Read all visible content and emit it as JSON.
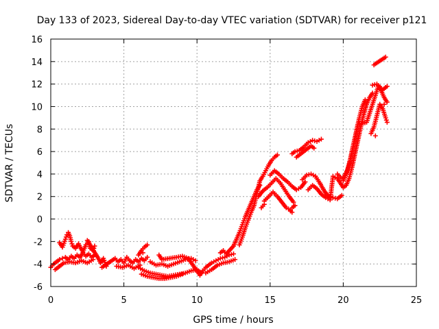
{
  "chart_data": {
    "type": "scatter",
    "title": "Day 133 of 2023, Sidereal Day-to-day VTEC variation (SDTVAR) for receiver p121",
    "xlabel": "GPS time / hours",
    "ylabel": "SDTVAR / TECUs",
    "xlim": [
      0,
      25
    ],
    "ylim": [
      -6,
      16
    ],
    "xticks": [
      0,
      5,
      10,
      15,
      20,
      25
    ],
    "yticks": [
      -6,
      -4,
      -2,
      0,
      2,
      4,
      6,
      8,
      10,
      12,
      14,
      16
    ],
    "grid": true,
    "marker": "+",
    "color": "#ff0000",
    "series": [
      {
        "name": "SDTVAR",
        "points": [
          [
            0.0,
            -4.3
          ],
          [
            0.2,
            -4.0
          ],
          [
            0.4,
            -3.8
          ],
          [
            0.6,
            -3.6
          ],
          [
            0.8,
            -3.5
          ],
          [
            1.0,
            -3.4
          ],
          [
            1.2,
            -3.6
          ],
          [
            1.4,
            -3.3
          ],
          [
            1.6,
            -3.5
          ],
          [
            1.8,
            -3.2
          ],
          [
            2.0,
            -3.4
          ],
          [
            2.2,
            -3.0
          ],
          [
            2.4,
            -3.3
          ],
          [
            2.6,
            -3.1
          ],
          [
            2.8,
            -3.4
          ],
          [
            3.0,
            -3.2
          ],
          [
            0.3,
            -4.5
          ],
          [
            0.6,
            -4.2
          ],
          [
            0.9,
            -3.9
          ],
          [
            1.3,
            -3.8
          ],
          [
            1.7,
            -3.9
          ],
          [
            2.1,
            -3.7
          ],
          [
            2.5,
            -3.9
          ],
          [
            2.9,
            -3.6
          ],
          [
            0.6,
            -2.1
          ],
          [
            0.8,
            -2.5
          ],
          [
            1.0,
            -1.8
          ],
          [
            1.1,
            -1.4
          ],
          [
            1.2,
            -1.2
          ],
          [
            1.3,
            -1.5
          ],
          [
            1.4,
            -2.0
          ],
          [
            1.5,
            -2.4
          ],
          [
            1.7,
            -2.6
          ],
          [
            1.9,
            -2.2
          ],
          [
            2.0,
            -2.5
          ],
          [
            2.2,
            -2.9
          ],
          [
            2.4,
            -2.3
          ],
          [
            2.6,
            -2.0
          ],
          [
            2.7,
            -2.6
          ],
          [
            2.9,
            -2.8
          ],
          [
            3.0,
            -2.4
          ],
          [
            2.5,
            -1.9
          ],
          [
            3.3,
            -3.6
          ],
          [
            3.4,
            -3.9
          ],
          [
            3.6,
            -3.5
          ],
          [
            3.8,
            -4.2
          ],
          [
            3.5,
            -4.3
          ],
          [
            4.4,
            -3.5
          ],
          [
            4.6,
            -3.8
          ],
          [
            4.8,
            -3.6
          ],
          [
            5.0,
            -3.9
          ],
          [
            5.2,
            -3.4
          ],
          [
            5.4,
            -3.7
          ],
          [
            5.6,
            -3.9
          ],
          [
            5.8,
            -3.6
          ],
          [
            6.0,
            -3.8
          ],
          [
            6.2,
            -3.5
          ],
          [
            6.4,
            -3.7
          ],
          [
            6.6,
            -3.4
          ],
          [
            4.5,
            -4.2
          ],
          [
            4.9,
            -4.3
          ],
          [
            5.3,
            -4.1
          ],
          [
            5.7,
            -4.4
          ],
          [
            6.1,
            -4.1
          ],
          [
            6.0,
            -3.2
          ],
          [
            6.2,
            -2.8
          ],
          [
            6.4,
            -2.5
          ],
          [
            6.6,
            -2.3
          ],
          [
            6.3,
            -3.0
          ],
          [
            6.0,
            -4.3
          ],
          [
            6.4,
            -4.6
          ],
          [
            6.8,
            -4.8
          ],
          [
            7.2,
            -4.9
          ],
          [
            7.6,
            -5.0
          ],
          [
            8.0,
            -5.1
          ],
          [
            8.4,
            -5.0
          ],
          [
            8.8,
            -4.9
          ],
          [
            9.2,
            -4.8
          ],
          [
            9.6,
            -4.6
          ],
          [
            10.0,
            -4.5
          ],
          [
            10.2,
            -4.7
          ],
          [
            6.2,
            -4.9
          ],
          [
            6.6,
            -5.1
          ],
          [
            7.0,
            -5.2
          ],
          [
            7.4,
            -5.3
          ],
          [
            7.8,
            -5.3
          ],
          [
            8.2,
            -5.2
          ],
          [
            8.6,
            -5.1
          ],
          [
            9.0,
            -4.9
          ],
          [
            6.8,
            -3.8
          ],
          [
            7.2,
            -4.1
          ],
          [
            7.6,
            -4.0
          ],
          [
            8.0,
            -4.2
          ],
          [
            8.4,
            -4.0
          ],
          [
            8.8,
            -3.8
          ],
          [
            9.2,
            -3.6
          ],
          [
            9.6,
            -3.5
          ],
          [
            9.9,
            -3.7
          ],
          [
            7.4,
            -3.2
          ],
          [
            7.6,
            -3.6
          ],
          [
            8.6,
            -3.4
          ],
          [
            9.0,
            -3.3
          ],
          [
            9.4,
            -3.5
          ],
          [
            10.2,
            -5.0
          ],
          [
            10.4,
            -4.6
          ],
          [
            10.6,
            -4.3
          ],
          [
            10.8,
            -4.1
          ],
          [
            11.0,
            -3.9
          ],
          [
            11.3,
            -3.7
          ],
          [
            11.6,
            -3.5
          ],
          [
            11.9,
            -3.4
          ],
          [
            12.2,
            -3.2
          ],
          [
            12.5,
            -3.1
          ],
          [
            10.6,
            -4.8
          ],
          [
            11.0,
            -4.5
          ],
          [
            11.4,
            -4.1
          ],
          [
            11.8,
            -3.9
          ],
          [
            12.2,
            -3.8
          ],
          [
            12.6,
            -3.6
          ],
          [
            11.6,
            -3.0
          ],
          [
            11.8,
            -2.8
          ],
          [
            12.0,
            -3.1
          ],
          [
            12.5,
            -2.4
          ],
          [
            12.7,
            -1.8
          ],
          [
            12.9,
            -1.2
          ],
          [
            13.1,
            -0.5
          ],
          [
            13.3,
            0.2
          ],
          [
            13.5,
            0.8
          ],
          [
            13.7,
            1.4
          ],
          [
            13.9,
            2.0
          ],
          [
            14.1,
            2.6
          ],
          [
            14.3,
            3.0
          ],
          [
            12.9,
            -2.3
          ],
          [
            13.1,
            -1.6
          ],
          [
            13.3,
            -0.8
          ],
          [
            13.5,
            -0.1
          ],
          [
            13.7,
            0.6
          ],
          [
            13.9,
            1.2
          ],
          [
            14.3,
            3.4
          ],
          [
            14.5,
            3.8
          ],
          [
            14.7,
            4.3
          ],
          [
            14.9,
            4.8
          ],
          [
            15.1,
            5.2
          ],
          [
            15.3,
            5.5
          ],
          [
            15.5,
            5.7
          ],
          [
            14.2,
            2.0
          ],
          [
            14.5,
            2.5
          ],
          [
            14.8,
            2.8
          ],
          [
            15.1,
            3.2
          ],
          [
            15.4,
            3.6
          ],
          [
            15.7,
            3.2
          ],
          [
            16.0,
            2.6
          ],
          [
            16.3,
            2.0
          ],
          [
            16.6,
            1.5
          ],
          [
            14.6,
            1.6
          ],
          [
            14.9,
            2.0
          ],
          [
            15.2,
            2.4
          ],
          [
            15.5,
            2.0
          ],
          [
            15.8,
            1.5
          ],
          [
            16.1,
            1.0
          ],
          [
            16.4,
            0.8
          ],
          [
            16.5,
            0.6
          ],
          [
            14.4,
            1.0
          ],
          [
            14.6,
            1.3
          ],
          [
            15.0,
            3.9
          ],
          [
            15.3,
            4.3
          ],
          [
            15.6,
            4.0
          ],
          [
            15.9,
            3.6
          ],
          [
            16.2,
            3.3
          ],
          [
            16.5,
            2.9
          ],
          [
            16.8,
            2.6
          ],
          [
            17.1,
            2.8
          ],
          [
            17.4,
            3.3
          ],
          [
            16.5,
            1.0
          ],
          [
            16.7,
            1.2
          ],
          [
            16.4,
            0.7
          ],
          [
            16.5,
            5.8
          ],
          [
            16.7,
            6.0
          ],
          [
            17.0,
            6.1
          ],
          [
            17.3,
            6.4
          ],
          [
            17.6,
            6.8
          ],
          [
            17.9,
            7.0
          ],
          [
            18.2,
            6.9
          ],
          [
            18.5,
            7.1
          ],
          [
            16.8,
            5.5
          ],
          [
            17.1,
            5.8
          ],
          [
            17.5,
            6.2
          ],
          [
            17.8,
            6.5
          ],
          [
            18.0,
            6.3
          ],
          [
            17.2,
            3.5
          ],
          [
            17.5,
            3.9
          ],
          [
            17.8,
            4.0
          ],
          [
            18.1,
            3.8
          ],
          [
            18.4,
            3.2
          ],
          [
            18.7,
            2.5
          ],
          [
            19.0,
            2.0
          ],
          [
            19.3,
            1.9
          ],
          [
            19.6,
            1.8
          ],
          [
            19.9,
            2.1
          ],
          [
            17.6,
            2.6
          ],
          [
            17.9,
            3.0
          ],
          [
            18.2,
            2.7
          ],
          [
            18.5,
            2.2
          ],
          [
            18.8,
            1.9
          ],
          [
            19.1,
            1.7
          ],
          [
            19.3,
            3.8
          ],
          [
            19.6,
            3.6
          ],
          [
            19.8,
            3.2
          ],
          [
            20.0,
            2.8
          ],
          [
            20.2,
            3.0
          ],
          [
            20.4,
            3.6
          ],
          [
            20.6,
            4.6
          ],
          [
            20.8,
            5.8
          ],
          [
            21.0,
            7.0
          ],
          [
            21.2,
            8.2
          ],
          [
            21.4,
            9.3
          ],
          [
            21.6,
            10.2
          ],
          [
            21.8,
            10.8
          ],
          [
            22.0,
            11.2
          ],
          [
            19.6,
            4.0
          ],
          [
            19.9,
            3.6
          ],
          [
            20.1,
            3.9
          ],
          [
            20.3,
            4.4
          ],
          [
            20.5,
            5.4
          ],
          [
            20.7,
            6.6
          ],
          [
            20.9,
            7.8
          ],
          [
            21.1,
            9.0
          ],
          [
            21.3,
            10.0
          ],
          [
            21.5,
            10.6
          ],
          [
            20.0,
            3.4
          ],
          [
            20.2,
            4.0
          ],
          [
            20.4,
            4.8
          ],
          [
            20.6,
            6.0
          ],
          [
            20.8,
            7.2
          ],
          [
            21.0,
            8.4
          ],
          [
            21.6,
            8.6
          ],
          [
            21.8,
            9.4
          ],
          [
            22.0,
            10.2
          ],
          [
            22.2,
            11.0
          ],
          [
            22.4,
            11.8
          ],
          [
            22.6,
            11.4
          ],
          [
            22.8,
            10.8
          ],
          [
            23.0,
            10.4
          ],
          [
            21.9,
            7.6
          ],
          [
            22.1,
            8.2
          ],
          [
            22.3,
            9.2
          ],
          [
            22.5,
            10.2
          ],
          [
            22.7,
            9.8
          ],
          [
            22.9,
            9.0
          ],
          [
            23.0,
            8.6
          ],
          [
            22.2,
            7.4
          ],
          [
            22.0,
            11.9
          ],
          [
            22.3,
            12.0
          ],
          [
            22.7,
            11.5
          ],
          [
            23.0,
            11.8
          ],
          [
            22.8,
            10.2
          ],
          [
            22.1,
            13.7
          ],
          [
            22.2,
            13.8
          ],
          [
            22.9,
            14.4
          ]
        ]
      }
    ]
  }
}
